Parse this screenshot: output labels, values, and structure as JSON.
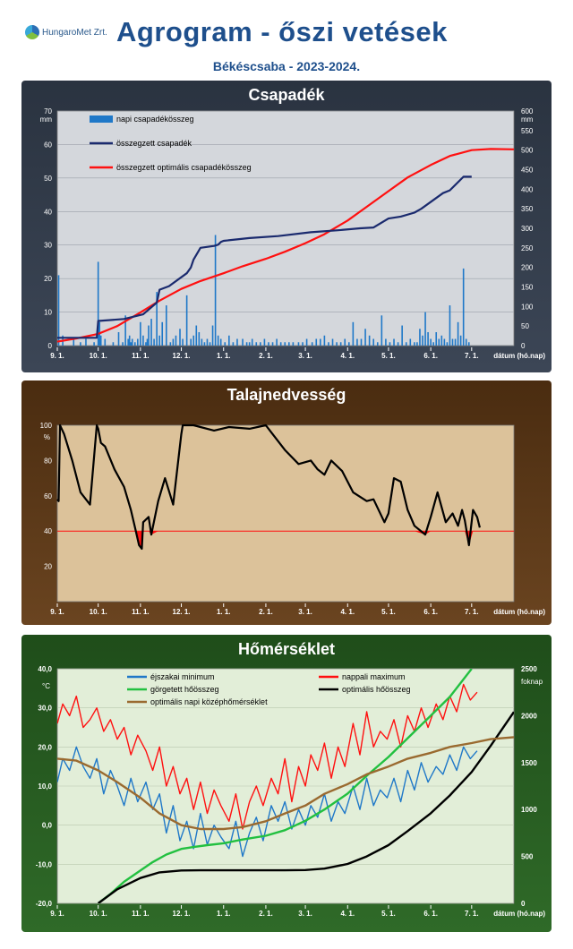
{
  "header": {
    "logo_text": "HungaroMet Zrt.",
    "title": "Agrogram - őszi vetések",
    "subtitle": "Békéscsaba  - 2023-2024."
  },
  "x_axis": {
    "ticks": [
      "9. 1.",
      "10. 1.",
      "11. 1.",
      "12. 1.",
      "1. 1.",
      "2. 1.",
      "3. 1.",
      "4. 1.",
      "5. 1.",
      "6. 1.",
      "7. 1."
    ],
    "unit_label": "dátum (hó.nap)"
  },
  "colors": {
    "rain_panel_bg": "#2f3947",
    "soil_panel_bg": "#5a3818",
    "temp_panel_bg": "#276020",
    "rain_plot_bg": "#d4d7dc",
    "soil_plot_bg": "#dcc29a",
    "temp_plot_bg": "#e2eed8",
    "daily_bar": "#1f78c8",
    "cum_rain": "#1a2a6e",
    "optimal_rain": "#ff1010",
    "soil_line": "#000000",
    "soil_threshold": "#ff1010",
    "tmin": "#1f78c8",
    "tmax": "#ff1010",
    "gdd": "#22c040",
    "opt_gdd": "#000000",
    "opt_mean": "#9a6a30"
  },
  "chart_data": [
    {
      "type": "bar+line",
      "title": "Csapadék",
      "left_axis": {
        "unit": "mm",
        "range": [
          0,
          70
        ],
        "ticks": [
          "0",
          "10",
          "20",
          "30",
          "40",
          "50",
          "60",
          "70"
        ]
      },
      "right_axis": {
        "unit": "mm",
        "range": [
          0,
          600
        ],
        "ticks": [
          "0",
          "50",
          "100",
          "150",
          "200",
          "250",
          "300",
          "350",
          "400",
          "450",
          "500",
          "550",
          "600"
        ]
      },
      "legend": [
        "napi csapadékösszeg",
        "összegzett csapadék",
        "összegzett optimális csapadékösszeg"
      ],
      "legend_position": "top-left",
      "daily_bars": {
        "name": "napi csapadékösszeg",
        "axis": "left",
        "x": [
          "09-02",
          "09-05",
          "09-13",
          "09-18",
          "09-22",
          "09-28",
          "10-01",
          "10-02",
          "10-03",
          "10-06",
          "10-12",
          "10-16",
          "10-19",
          "10-21",
          "10-23",
          "10-24",
          "10-25",
          "10-26",
          "10-28",
          "10-30",
          "11-01",
          "11-03",
          "11-05",
          "11-06",
          "11-07",
          "11-09",
          "11-11",
          "11-13",
          "11-15",
          "11-17",
          "11-20",
          "11-23",
          "11-25",
          "11-27",
          "11-30",
          "12-02",
          "12-05",
          "12-08",
          "12-10",
          "12-12",
          "12-14",
          "12-16",
          "12-18",
          "12-20",
          "12-22",
          "12-24",
          "12-26",
          "12-28",
          "12-30",
          "01-02",
          "01-05",
          "01-08",
          "01-11",
          "01-15",
          "01-18",
          "01-20",
          "01-22",
          "01-25",
          "01-28",
          "01-31",
          "02-03",
          "02-06",
          "02-09",
          "02-12",
          "02-15",
          "02-18",
          "02-21",
          "02-25",
          "02-28",
          "03-02",
          "03-06",
          "03-09",
          "03-12",
          "03-15",
          "03-18",
          "03-21",
          "03-24",
          "03-27",
          "03-30",
          "04-02",
          "04-05",
          "04-08",
          "04-11",
          "04-14",
          "04-17",
          "04-20",
          "04-23",
          "04-26",
          "04-29",
          "05-02",
          "05-05",
          "05-08",
          "05-11",
          "05-14",
          "05-17",
          "05-20",
          "05-22",
          "05-24",
          "05-26",
          "05-28",
          "05-30",
          "06-01",
          "06-03",
          "06-05",
          "06-07",
          "06-09",
          "06-11",
          "06-13",
          "06-15",
          "06-17",
          "06-19",
          "06-21",
          "06-23",
          "06-25",
          "06-27",
          "06-29"
        ],
        "values": [
          21,
          3,
          2,
          1,
          2,
          1,
          25,
          7,
          3,
          2,
          1,
          4,
          1,
          9,
          2,
          3,
          1,
          2,
          1,
          2,
          7,
          3,
          1,
          2,
          6,
          8,
          2,
          16,
          3,
          7,
          12,
          1,
          2,
          3,
          5,
          2,
          15,
          2,
          3,
          6,
          4,
          2,
          1,
          2,
          1,
          6,
          33,
          3,
          2,
          1,
          3,
          1,
          2,
          2,
          1,
          1,
          2,
          1,
          1,
          2,
          1,
          1,
          2,
          1,
          1,
          1,
          1,
          1,
          1,
          2,
          1,
          2,
          2,
          3,
          1,
          2,
          1,
          1,
          2,
          1,
          7,
          2,
          2,
          5,
          3,
          2,
          1,
          9,
          2,
          1,
          2,
          1,
          6,
          1,
          2,
          1,
          1,
          5,
          3,
          10,
          4,
          2,
          1,
          4,
          2,
          3,
          2,
          1,
          12,
          2,
          2,
          7,
          3,
          23,
          2,
          1
        ]
      },
      "series": [
        {
          "name": "összegzett csapadék",
          "axis": "right",
          "x": [
            "09-01",
            "09-06",
            "09-30",
            "10-01",
            "10-20",
            "11-03",
            "11-13",
            "11-15",
            "11-22",
            "12-05",
            "12-08",
            "12-10",
            "12-15",
            "12-25",
            "12-28",
            "12-30",
            "01-01",
            "01-20",
            "02-10",
            "03-05",
            "03-25",
            "04-10",
            "04-20",
            "05-01",
            "05-10",
            "05-20",
            "05-25",
            "06-10",
            "06-15",
            "06-25",
            "07-01"
          ],
          "values": [
            20,
            20,
            20,
            63,
            68,
            80,
            110,
            143,
            152,
            185,
            200,
            220,
            250,
            255,
            258,
            265,
            268,
            275,
            280,
            290,
            295,
            300,
            302,
            325,
            330,
            340,
            350,
            390,
            397,
            432,
            432
          ]
        },
        {
          "name": "összegzett optimális csapadékösszeg",
          "axis": "right",
          "x": [
            "09-01",
            "09-15",
            "10-01",
            "10-15",
            "11-01",
            "11-15",
            "12-01",
            "12-15",
            "01-01",
            "01-15",
            "02-01",
            "02-15",
            "03-01",
            "03-15",
            "04-01",
            "04-15",
            "05-01",
            "05-15",
            "06-01",
            "06-15",
            "07-01",
            "07-15",
            "08-01"
          ],
          "values": [
            10,
            18,
            30,
            50,
            85,
            115,
            145,
            165,
            185,
            203,
            222,
            240,
            262,
            285,
            320,
            355,
            395,
            430,
            462,
            485,
            500,
            503,
            502
          ]
        }
      ]
    },
    {
      "type": "line",
      "title": "Talajnedvesség",
      "y_axis": {
        "unit": "%",
        "range": [
          0,
          100
        ],
        "ticks": [
          "20",
          "40",
          "60",
          "80",
          "100"
        ]
      },
      "threshold": 40,
      "series": [
        {
          "name": "talajnedvesség",
          "x": [
            "09-01",
            "09-02",
            "09-03",
            "09-06",
            "09-12",
            "09-18",
            "09-25",
            "09-30",
            "10-01",
            "10-03",
            "10-06",
            "10-13",
            "10-20",
            "10-25",
            "10-28",
            "10-31",
            "11-02",
            "11-03",
            "11-07",
            "11-09",
            "11-14",
            "11-19",
            "11-25",
            "12-01",
            "12-02",
            "12-10",
            "12-25",
            "01-05",
            "01-20",
            "02-01",
            "02-05",
            "02-15",
            "02-25",
            "03-05",
            "03-10",
            "03-15",
            "03-20",
            "03-28",
            "04-05",
            "04-15",
            "04-20",
            "04-28",
            "05-01",
            "05-05",
            "05-10",
            "05-15",
            "05-20",
            "05-28",
            "06-01",
            "06-06",
            "06-12",
            "06-17",
            "06-21",
            "06-24",
            "06-26",
            "06-29",
            "07-02",
            "07-05",
            "07-07"
          ],
          "values": [
            58,
            57,
            100,
            95,
            80,
            62,
            55,
            100,
            98,
            90,
            88,
            75,
            65,
            52,
            42,
            32,
            30,
            45,
            48,
            38,
            57,
            70,
            55,
            95,
            100,
            100,
            97,
            99,
            98,
            100,
            96,
            86,
            78,
            80,
            75,
            72,
            80,
            74,
            62,
            57,
            58,
            45,
            50,
            70,
            68,
            52,
            43,
            38,
            48,
            62,
            45,
            50,
            43,
            52,
            46,
            32,
            52,
            48,
            42
          ]
        }
      ]
    },
    {
      "type": "line",
      "title": "Hőmérséklet",
      "left_axis": {
        "unit": "°C",
        "range": [
          -20,
          40
        ],
        "ticks": [
          "-20,0",
          "-10,0",
          "0,0",
          "10,0",
          "20,0",
          "30,0",
          "40,0"
        ]
      },
      "right_axis": {
        "unit": "foknap",
        "range": [
          0,
          2500
        ],
        "ticks": [
          "0",
          "500",
          "1000",
          "1500",
          "2000",
          "2500"
        ]
      },
      "legend": [
        "éjszakai minimum",
        "nappali maximum",
        "görgetett hőösszeg",
        "optimális hőösszeg",
        "optimális napi középhőmérséklet"
      ],
      "legend_position": "top",
      "series": [
        {
          "name": "éjszakai minimum",
          "axis": "left",
          "x": [
            "09-01",
            "09-05",
            "09-10",
            "09-15",
            "09-20",
            "09-25",
            "09-30",
            "10-05",
            "10-10",
            "10-15",
            "10-20",
            "10-25",
            "10-30",
            "11-05",
            "11-10",
            "11-15",
            "11-20",
            "11-25",
            "11-30",
            "12-05",
            "12-10",
            "12-15",
            "12-20",
            "12-25",
            "12-30",
            "01-05",
            "01-10",
            "01-15",
            "01-20",
            "01-25",
            "01-30",
            "02-05",
            "02-10",
            "02-15",
            "02-20",
            "02-25",
            "03-01",
            "03-05",
            "03-10",
            "03-15",
            "03-20",
            "03-25",
            "03-30",
            "04-05",
            "04-10",
            "04-15",
            "04-20",
            "04-25",
            "04-30",
            "05-05",
            "05-10",
            "05-15",
            "05-20",
            "05-25",
            "05-30",
            "06-05",
            "06-10",
            "06-15",
            "06-20",
            "06-25",
            "06-30",
            "07-05"
          ],
          "values": [
            11,
            17,
            14,
            20,
            15,
            12,
            17,
            8,
            14,
            10,
            5,
            12,
            6,
            11,
            4,
            8,
            -2,
            5,
            -4,
            1,
            -6,
            3,
            -5,
            0,
            -3,
            -6,
            1,
            -8,
            -2,
            2,
            -4,
            5,
            1,
            6,
            -1,
            4,
            0,
            5,
            2,
            8,
            1,
            6,
            3,
            10,
            4,
            12,
            5,
            9,
            7,
            12,
            6,
            14,
            9,
            16,
            11,
            15,
            13,
            18,
            14,
            20,
            17,
            19
          ]
        },
        {
          "name": "nappali maximum",
          "axis": "left",
          "x": [
            "09-01",
            "09-05",
            "09-10",
            "09-15",
            "09-20",
            "09-25",
            "09-30",
            "10-05",
            "10-10",
            "10-15",
            "10-20",
            "10-25",
            "10-30",
            "11-05",
            "11-10",
            "11-15",
            "11-20",
            "11-25",
            "11-30",
            "12-05",
            "12-10",
            "12-15",
            "12-20",
            "12-25",
            "12-30",
            "01-05",
            "01-10",
            "01-15",
            "01-20",
            "01-25",
            "01-30",
            "02-05",
            "02-10",
            "02-15",
            "02-20",
            "02-25",
            "03-01",
            "03-05",
            "03-10",
            "03-15",
            "03-20",
            "03-25",
            "03-30",
            "04-05",
            "04-10",
            "04-15",
            "04-20",
            "04-25",
            "04-30",
            "05-05",
            "05-10",
            "05-15",
            "05-20",
            "05-25",
            "05-30",
            "06-05",
            "06-10",
            "06-15",
            "06-20",
            "06-25",
            "06-30",
            "07-05"
          ],
          "values": [
            26,
            31,
            28,
            33,
            25,
            27,
            30,
            24,
            27,
            22,
            25,
            18,
            23,
            19,
            14,
            20,
            10,
            15,
            8,
            12,
            4,
            11,
            3,
            9,
            5,
            1,
            8,
            -1,
            6,
            10,
            5,
            12,
            8,
            17,
            6,
            15,
            10,
            18,
            14,
            21,
            12,
            20,
            15,
            26,
            18,
            29,
            20,
            24,
            22,
            27,
            20,
            28,
            24,
            30,
            25,
            31,
            27,
            33,
            29,
            36,
            32,
            34
          ]
        },
        {
          "name": "görgetett hőösszeg",
          "axis": "right",
          "x": [
            "10-01",
            "10-10",
            "10-20",
            "11-01",
            "11-10",
            "11-20",
            "12-01",
            "12-10",
            "12-20",
            "01-01",
            "01-15",
            "02-01",
            "02-15",
            "03-01",
            "03-15",
            "04-01",
            "04-15",
            "05-01",
            "05-15",
            "06-01",
            "06-15",
            "07-01"
          ],
          "values": [
            0,
            100,
            230,
            350,
            440,
            520,
            580,
            600,
            620,
            640,
            680,
            720,
            780,
            880,
            1000,
            1170,
            1360,
            1560,
            1760,
            2000,
            2200,
            2500
          ]
        },
        {
          "name": "optimális hőösszeg",
          "axis": "right",
          "x": [
            "10-01",
            "10-15",
            "11-01",
            "11-15",
            "12-01",
            "12-15",
            "01-01",
            "01-15",
            "02-01",
            "02-15",
            "03-01",
            "03-15",
            "04-01",
            "04-15",
            "05-01",
            "05-15",
            "06-01",
            "06-15",
            "07-01",
            "07-15",
            "08-01"
          ],
          "values": [
            0,
            150,
            270,
            330,
            350,
            352,
            352,
            352,
            352,
            352,
            355,
            370,
            420,
            500,
            620,
            770,
            960,
            1150,
            1400,
            1680,
            2040
          ]
        },
        {
          "name": "optimális napi középhőmérséklet",
          "axis": "left",
          "x": [
            "09-01",
            "09-15",
            "10-01",
            "10-15",
            "11-01",
            "11-15",
            "12-01",
            "12-15",
            "01-01",
            "01-15",
            "02-01",
            "02-15",
            "03-01",
            "03-15",
            "04-01",
            "04-15",
            "05-01",
            "05-15",
            "06-01",
            "06-15",
            "07-01",
            "07-15",
            "08-01"
          ],
          "values": [
            17,
            16.5,
            14,
            11,
            7,
            3,
            0,
            -1,
            -1,
            -0.5,
            1,
            3,
            5,
            8,
            10.5,
            13,
            15,
            17,
            18.5,
            20,
            21,
            22,
            22.5
          ]
        }
      ]
    }
  ]
}
